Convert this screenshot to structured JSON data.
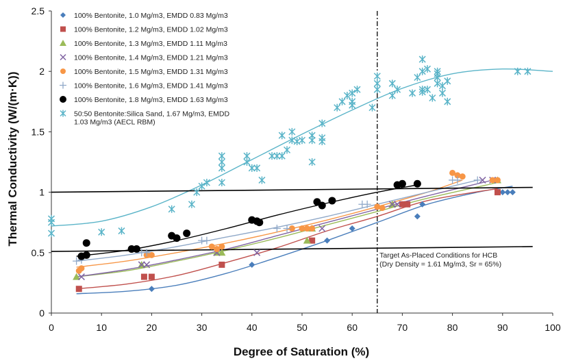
{
  "chart_data": {
    "type": "scatter",
    "xlabel": "Degree of Saturation (%)",
    "ylabel": "Thermal Conductivity (W/(m·K))",
    "xlim": [
      0,
      100
    ],
    "ylim": [
      0,
      2.5
    ],
    "x_ticks": [
      "0",
      "10",
      "20",
      "30",
      "40",
      "50",
      "60",
      "70",
      "80",
      "90",
      "100"
    ],
    "y_ticks": [
      "0",
      "0.5",
      "1",
      "1.5",
      "2",
      "2.5"
    ],
    "legend_position": "top-left",
    "series": [
      {
        "name": "100% Bentonite, 1.0 Mg/m3, EMDD 0.83 Mg/m3",
        "marker": "diamond",
        "color": "#4a7ebb",
        "points": [
          [
            20,
            0.2
          ],
          [
            40,
            0.4
          ],
          [
            52,
            0.6
          ],
          [
            55,
            0.6
          ],
          [
            60,
            0.7
          ],
          [
            73,
            0.8
          ],
          [
            74,
            0.9
          ],
          [
            90,
            1.0
          ],
          [
            91,
            1.0
          ],
          [
            92,
            1.0
          ]
        ],
        "fit": [
          [
            5,
            0.16
          ],
          [
            15,
            0.18
          ],
          [
            25,
            0.23
          ],
          [
            35,
            0.33
          ],
          [
            45,
            0.46
          ],
          [
            55,
            0.6
          ],
          [
            65,
            0.75
          ],
          [
            75,
            0.9
          ],
          [
            85,
            1.0
          ],
          [
            92,
            1.05
          ]
        ]
      },
      {
        "name": "100% Bentonite, 1.2 Mg/m3, EMDD 1.02 Mg/m3",
        "marker": "square",
        "color": "#c0504d",
        "points": [
          [
            5.5,
            0.2
          ],
          [
            18.5,
            0.3
          ],
          [
            20,
            0.3
          ],
          [
            34,
            0.4
          ],
          [
            52,
            0.6
          ],
          [
            70,
            0.9
          ],
          [
            71,
            0.9
          ],
          [
            89,
            1.0
          ]
        ],
        "fit": [
          [
            5,
            0.2
          ],
          [
            15,
            0.24
          ],
          [
            25,
            0.31
          ],
          [
            35,
            0.42
          ],
          [
            45,
            0.54
          ],
          [
            55,
            0.68
          ],
          [
            65,
            0.8
          ],
          [
            75,
            0.93
          ],
          [
            89,
            1.03
          ]
        ]
      },
      {
        "name": "100% Bentonite, 1.3 Mg/m3, EMDD 1.11 Mg/m3",
        "marker": "triangle",
        "color": "#9bbb59",
        "points": [
          [
            5,
            0.3
          ],
          [
            18,
            0.4
          ],
          [
            33,
            0.5
          ],
          [
            34,
            0.5
          ],
          [
            51,
            0.6
          ],
          [
            52,
            0.7
          ],
          [
            68,
            0.9
          ],
          [
            89,
            1.1
          ]
        ],
        "fit": [
          [
            5,
            0.3
          ],
          [
            15,
            0.35
          ],
          [
            25,
            0.43
          ],
          [
            35,
            0.52
          ],
          [
            45,
            0.62
          ],
          [
            55,
            0.73
          ],
          [
            65,
            0.84
          ],
          [
            75,
            0.95
          ],
          [
            89,
            1.08
          ]
        ]
      },
      {
        "name": "100% Bentonite, 1.4 Mg/m3, EMDD 1.21 Mg/m3",
        "marker": "x",
        "color": "#8064a2",
        "points": [
          [
            6,
            0.3
          ],
          [
            18,
            0.4
          ],
          [
            19,
            0.4
          ],
          [
            33,
            0.5
          ],
          [
            41,
            0.5
          ],
          [
            54,
            0.7
          ],
          [
            68,
            0.9
          ],
          [
            69,
            0.9
          ],
          [
            86,
            1.1
          ],
          [
            88,
            1.1
          ]
        ],
        "fit": [
          [
            5,
            0.3
          ],
          [
            15,
            0.36
          ],
          [
            25,
            0.44
          ],
          [
            35,
            0.53
          ],
          [
            45,
            0.64
          ],
          [
            55,
            0.75
          ],
          [
            65,
            0.86
          ],
          [
            75,
            0.97
          ],
          [
            88,
            1.1
          ]
        ]
      },
      {
        "name": "100% Bentonite, 1.5 Mg/m3, EMDD 1.31 Mg/m3",
        "marker": "circle",
        "color": "#f79646",
        "points": [
          [
            5.5,
            0.35
          ],
          [
            6,
            0.37
          ],
          [
            19,
            0.48
          ],
          [
            20,
            0.48
          ],
          [
            32,
            0.55
          ],
          [
            33,
            0.53
          ],
          [
            34,
            0.55
          ],
          [
            48,
            0.7
          ],
          [
            50,
            0.7
          ],
          [
            51,
            0.7
          ],
          [
            52,
            0.7
          ],
          [
            65,
            0.88
          ],
          [
            66,
            0.87
          ],
          [
            80,
            1.16
          ],
          [
            81,
            1.14
          ],
          [
            82,
            1.13
          ],
          [
            88,
            1.1
          ],
          [
            89,
            1.1
          ]
        ],
        "fit": [
          [
            5,
            0.38
          ],
          [
            15,
            0.43
          ],
          [
            25,
            0.5
          ],
          [
            35,
            0.58
          ],
          [
            45,
            0.67
          ],
          [
            55,
            0.77
          ],
          [
            65,
            0.88
          ],
          [
            75,
            1.0
          ],
          [
            82,
            1.1
          ]
        ]
      },
      {
        "name": "100% Bentonite, 1.6 Mg/m3, EMDD 1.41 Mg/m3",
        "marker": "plus",
        "color": "#8fa8c8",
        "points": [
          [
            5,
            0.43
          ],
          [
            6,
            0.44
          ],
          [
            18,
            0.5
          ],
          [
            19,
            0.5
          ],
          [
            30,
            0.6
          ],
          [
            31,
            0.6
          ],
          [
            45,
            0.7
          ],
          [
            47,
            0.7
          ],
          [
            62,
            0.9
          ],
          [
            63,
            0.9
          ],
          [
            80,
            1.1
          ],
          [
            81,
            1.1
          ],
          [
            85,
            1.1
          ]
        ],
        "fit": [
          [
            5,
            0.43
          ],
          [
            15,
            0.48
          ],
          [
            25,
            0.55
          ],
          [
            35,
            0.63
          ],
          [
            45,
            0.71
          ],
          [
            55,
            0.8
          ],
          [
            65,
            0.9
          ],
          [
            75,
            1.0
          ],
          [
            85,
            1.1
          ]
        ]
      },
      {
        "name": "100% Bentonite, 1.8 Mg/m3, EMDD 1.63 Mg/m3",
        "marker": "dot",
        "color": "#000000",
        "points": [
          [
            6,
            0.47
          ],
          [
            7,
            0.48
          ],
          [
            7,
            0.58
          ],
          [
            16,
            0.53
          ],
          [
            17,
            0.53
          ],
          [
            24,
            0.64
          ],
          [
            25,
            0.62
          ],
          [
            27,
            0.66
          ],
          [
            40,
            0.77
          ],
          [
            41,
            0.76
          ],
          [
            41.5,
            0.75
          ],
          [
            53,
            0.92
          ],
          [
            54,
            0.89
          ],
          [
            56,
            0.93
          ],
          [
            69,
            1.06
          ],
          [
            70,
            1.07
          ],
          [
            73,
            1.07
          ]
        ],
        "fit": [
          [
            5,
            0.47
          ],
          [
            15,
            0.52
          ],
          [
            25,
            0.6
          ],
          [
            35,
            0.7
          ],
          [
            45,
            0.81
          ],
          [
            55,
            0.91
          ],
          [
            65,
            1.0
          ],
          [
            73,
            1.06
          ]
        ]
      },
      {
        "name": "50:50 Bentonite:Silica Sand, 1.67 Mg/m3, EMDD 1.03 Mg/m3 (AECL RBM)",
        "marker": "star",
        "color": "#5ab4c8",
        "points": [
          [
            0,
            0.78
          ],
          [
            0,
            0.66
          ],
          [
            0,
            0.75
          ],
          [
            10,
            0.67
          ],
          [
            14,
            0.68
          ],
          [
            24,
            0.86
          ],
          [
            28,
            0.9
          ],
          [
            29,
            1.0
          ],
          [
            30,
            1.05
          ],
          [
            31,
            1.08
          ],
          [
            34,
            1.2
          ],
          [
            34,
            1.25
          ],
          [
            34,
            1.3
          ],
          [
            34,
            1.08
          ],
          [
            39,
            1.3
          ],
          [
            39,
            1.25
          ],
          [
            40,
            1.2
          ],
          [
            41,
            1.2
          ],
          [
            42,
            1.1
          ],
          [
            44,
            1.3
          ],
          [
            45,
            1.3
          ],
          [
            46,
            1.47
          ],
          [
            46,
            1.3
          ],
          [
            47,
            1.35
          ],
          [
            48,
            1.43
          ],
          [
            48,
            1.5
          ],
          [
            49,
            1.42
          ],
          [
            50,
            1.43
          ],
          [
            52,
            1.47
          ],
          [
            52,
            1.25
          ],
          [
            52,
            1.43
          ],
          [
            54,
            1.57
          ],
          [
            54,
            1.42
          ],
          [
            54,
            1.45
          ],
          [
            57,
            1.7
          ],
          [
            58,
            1.75
          ],
          [
            59,
            1.8
          ],
          [
            60,
            1.82
          ],
          [
            60,
            1.75
          ],
          [
            60,
            1.72
          ],
          [
            61,
            1.85
          ],
          [
            64,
            1.7
          ],
          [
            65,
            1.9
          ],
          [
            65,
            1.85
          ],
          [
            65,
            1.96
          ],
          [
            68,
            1.9
          ],
          [
            68,
            1.8
          ],
          [
            69,
            1.85
          ],
          [
            72,
            1.82
          ],
          [
            73,
            1.95
          ],
          [
            74,
            1.85
          ],
          [
            74,
            1.83
          ],
          [
            74,
            2.0
          ],
          [
            74,
            2.1
          ],
          [
            75,
            1.85
          ],
          [
            75,
            2.02
          ],
          [
            76,
            1.78
          ],
          [
            77,
            1.9
          ],
          [
            77,
            1.98
          ],
          [
            77,
            1.95
          ],
          [
            77,
            2.0
          ],
          [
            78,
            1.88
          ],
          [
            78,
            1.82
          ],
          [
            79,
            1.75
          ],
          [
            79,
            1.92
          ],
          [
            93,
            2.0
          ],
          [
            95,
            2.0
          ]
        ],
        "fit": [
          [
            0,
            0.72
          ],
          [
            10,
            0.76
          ],
          [
            20,
            0.88
          ],
          [
            30,
            1.06
          ],
          [
            40,
            1.27
          ],
          [
            50,
            1.48
          ],
          [
            60,
            1.68
          ],
          [
            70,
            1.86
          ],
          [
            80,
            1.98
          ],
          [
            90,
            2.02
          ],
          [
            100,
            2.0
          ]
        ]
      }
    ],
    "reference_lines": [
      {
        "points": [
          [
            0,
            1.0
          ],
          [
            96,
            1.04
          ]
        ]
      },
      {
        "points": [
          [
            0,
            0.51
          ],
          [
            96,
            0.55
          ]
        ]
      }
    ],
    "vertical_line": {
      "x": 65
    },
    "annotation": {
      "lines": [
        "Target As-Placed Conditions for HCB",
        "(Dry Density = 1.61 Mg/m3, Sr = 65%)"
      ],
      "x": 66,
      "y": 0.46
    }
  }
}
